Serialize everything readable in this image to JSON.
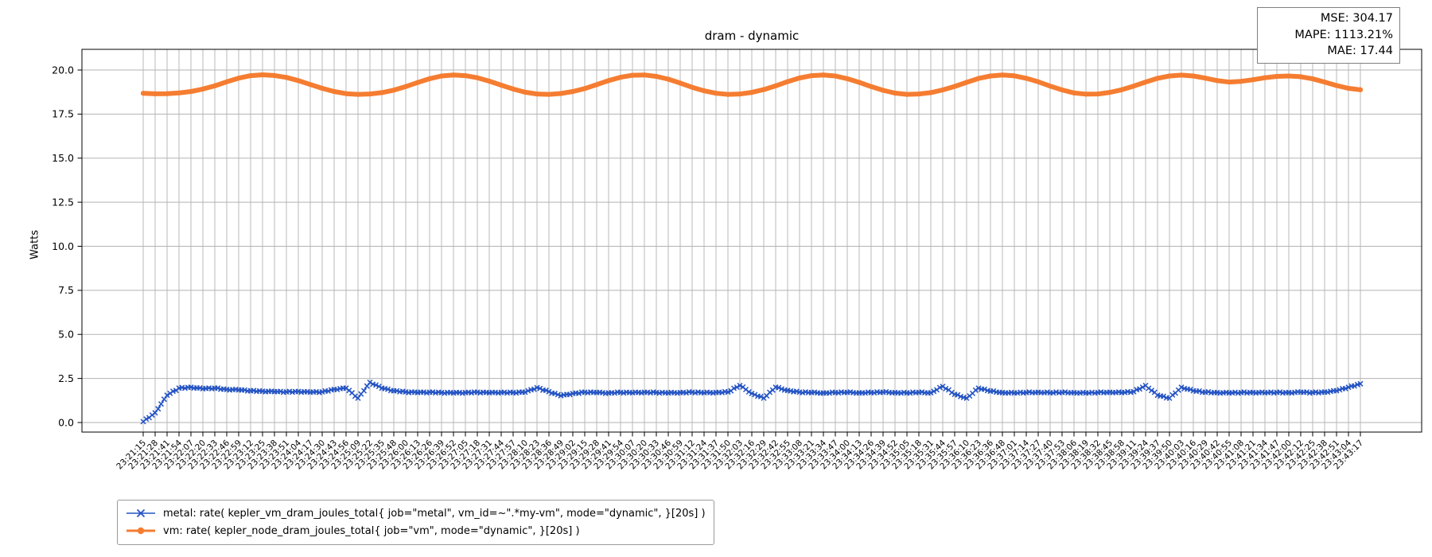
{
  "title": "dram - dynamic",
  "stats": {
    "mse": "MSE: 304.17",
    "mape": "MAPE: 1113.21%",
    "mae": "MAE: 17.44"
  },
  "chart_data": {
    "type": "line",
    "title": "dram - dynamic",
    "xlabel": "",
    "ylabel": "Watts",
    "grid": true,
    "legend_position": "below-left",
    "ylim": [
      -0.55,
      21.2
    ],
    "y_ticks": [
      0.0,
      2.5,
      5.0,
      7.5,
      10.0,
      12.5,
      15.0,
      17.5,
      20.0
    ],
    "x": [
      "23:21:15",
      "23:21:28",
      "23:21:41",
      "23:21:54",
      "23:22:07",
      "23:22:20",
      "23:22:33",
      "23:22:46",
      "23:22:59",
      "23:23:12",
      "23:23:25",
      "23:23:38",
      "23:23:51",
      "23:24:04",
      "23:24:17",
      "23:24:30",
      "23:24:43",
      "23:24:56",
      "23:25:09",
      "23:25:22",
      "23:25:35",
      "23:25:48",
      "23:26:00",
      "23:26:13",
      "23:26:26",
      "23:26:39",
      "23:26:52",
      "23:27:05",
      "23:27:18",
      "23:27:31",
      "23:27:44",
      "23:27:57",
      "23:28:10",
      "23:28:23",
      "23:28:36",
      "23:28:49",
      "23:29:02",
      "23:29:15",
      "23:29:28",
      "23:29:41",
      "23:29:54",
      "23:30:07",
      "23:30:20",
      "23:30:33",
      "23:30:46",
      "23:30:59",
      "23:31:12",
      "23:31:24",
      "23:31:37",
      "23:31:50",
      "23:32:03",
      "23:32:16",
      "23:32:29",
      "23:32:42",
      "23:32:55",
      "23:33:08",
      "23:33:21",
      "23:33:34",
      "23:33:47",
      "23:34:00",
      "23:34:13",
      "23:34:26",
      "23:34:39",
      "23:34:52",
      "23:35:05",
      "23:35:18",
      "23:35:31",
      "23:35:44",
      "23:35:57",
      "23:36:10",
      "23:36:23",
      "23:36:36",
      "23:36:48",
      "23:37:01",
      "23:37:14",
      "23:37:27",
      "23:37:40",
      "23:37:53",
      "23:38:06",
      "23:38:19",
      "23:38:32",
      "23:38:45",
      "23:38:58",
      "23:39:11",
      "23:39:24",
      "23:39:37",
      "23:39:50",
      "23:40:03",
      "23:40:16",
      "23:40:29",
      "23:40:42",
      "23:40:55",
      "23:41:08",
      "23:41:21",
      "23:41:34",
      "23:41:47",
      "23:42:00",
      "23:42:12",
      "23:42:25",
      "23:42:38",
      "23:42:51",
      "23:43:04",
      "23:43:17"
    ],
    "series": [
      {
        "name": "metal",
        "label": "metal: rate( kepler_vm_dram_joules_total{ job=\"metal\", vm_id=~\".*my-vm\", mode=\"dynamic\", }[20s] )",
        "color": "#2353c4",
        "marker": "x",
        "values": [
          0.05,
          0.55,
          1.55,
          1.95,
          2.0,
          1.92,
          1.95,
          1.88,
          1.85,
          1.8,
          1.78,
          1.75,
          1.74,
          1.76,
          1.72,
          1.74,
          1.88,
          1.95,
          1.38,
          2.28,
          1.95,
          1.8,
          1.74,
          1.7,
          1.72,
          1.7,
          1.68,
          1.7,
          1.72,
          1.69,
          1.71,
          1.7,
          1.72,
          1.98,
          1.75,
          1.52,
          1.65,
          1.72,
          1.7,
          1.68,
          1.71,
          1.69,
          1.72,
          1.7,
          1.68,
          1.7,
          1.72,
          1.69,
          1.71,
          1.73,
          2.1,
          1.65,
          1.38,
          2.0,
          1.82,
          1.72,
          1.7,
          1.68,
          1.7,
          1.71,
          1.69,
          1.7,
          1.72,
          1.7,
          1.68,
          1.71,
          1.69,
          2.05,
          1.6,
          1.38,
          1.95,
          1.78,
          1.7,
          1.68,
          1.7,
          1.72,
          1.69,
          1.71,
          1.7,
          1.68,
          1.7,
          1.72,
          1.7,
          1.75,
          2.1,
          1.55,
          1.38,
          2.0,
          1.8,
          1.72,
          1.7,
          1.68,
          1.7,
          1.71,
          1.69,
          1.71,
          1.7,
          1.72,
          1.7,
          1.73,
          1.8,
          2.0,
          2.2
        ]
      },
      {
        "name": "vm",
        "label": "vm: rate( kepler_node_dram_joules_total{ job=\"vm\", mode=\"dynamic\", }[20s] )",
        "color": "#f57d31",
        "marker": "o",
        "values": [
          18.68,
          18.65,
          18.66,
          18.7,
          18.78,
          18.92,
          19.1,
          19.33,
          19.54,
          19.68,
          19.73,
          19.69,
          19.58,
          19.4,
          19.18,
          18.96,
          18.78,
          18.66,
          18.62,
          18.64,
          18.72,
          18.86,
          19.06,
          19.29,
          19.51,
          19.66,
          19.72,
          19.68,
          19.56,
          19.37,
          19.14,
          18.92,
          18.74,
          18.64,
          18.62,
          18.67,
          18.78,
          18.95,
          19.17,
          19.4,
          19.59,
          19.7,
          19.72,
          19.64,
          19.48,
          19.26,
          19.02,
          18.82,
          18.68,
          18.62,
          18.64,
          18.73,
          18.89,
          19.1,
          19.34,
          19.55,
          19.68,
          19.72,
          19.66,
          19.51,
          19.3,
          19.06,
          18.85,
          18.69,
          18.62,
          18.64,
          18.72,
          18.87,
          19.07,
          19.3,
          19.52,
          19.66,
          19.72,
          19.67,
          19.53,
          19.33,
          19.09,
          18.87,
          18.7,
          18.63,
          18.64,
          18.73,
          18.88,
          19.09,
          19.32,
          19.53,
          19.66,
          19.71,
          19.66,
          19.54,
          19.4,
          19.32,
          19.36,
          19.45,
          19.56,
          19.64,
          19.66,
          19.62,
          19.5,
          19.32,
          19.12,
          18.96,
          18.88
        ]
      }
    ]
  }
}
